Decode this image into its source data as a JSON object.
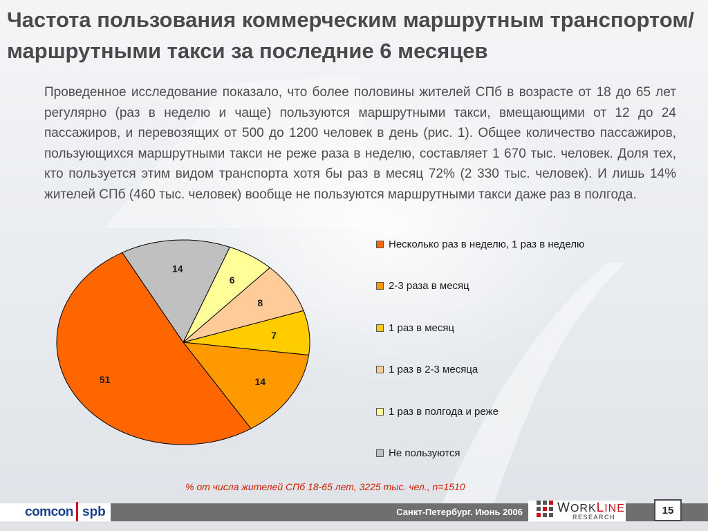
{
  "title": "Частота пользования коммерческим маршрутным транспортом/маршрутными такси за последние 6 месяцев",
  "intro": "Проведенное исследование показало, что более половины жителей СПб в возрасте от 18 до 65 лет регулярно (раз в неделю и чаще) пользуются маршрутными такси, вмещающими от 12 до 24 пассажиров, и перевозящих от 500 до 1200 человек в день (рис. 1). Общее количество пассажиров, пользующихся маршрутными такси не реже раза в неделю, составляет 1 670 тыс. человек. Доля тех, кто пользуется этим видом транспорта хотя бы раз в месяц 72% (2 330 тыс. человек). И лишь 14% жителей СПб (460 тыс. человек) вообще не пользуются маршрутными такси даже раз в полгода.",
  "chart_data": {
    "type": "pie",
    "title": "",
    "legend_position": "right",
    "categories": [
      "Несколько раз в неделю, 1 раз в неделю",
      "2-3 раза в месяц",
      "1 раз в месяц",
      "1 раз в 2-3 месяца",
      "1 раз в полгода и реже",
      "Не пользуются"
    ],
    "values": [
      51,
      14,
      7,
      8,
      6,
      14
    ],
    "labels": [
      "51",
      "14",
      "7",
      "8",
      "6",
      "14"
    ],
    "colors": [
      "#ff6600",
      "#ff9900",
      "#ffcc00",
      "#ffcc99",
      "#ffff99",
      "#c0c0c0"
    ]
  },
  "footnote": "% от числа жителей СПб 18-65 лет, 3225 тыс. чел., n=1510",
  "footer": {
    "logo_left": "comcon",
    "logo_right": "spb",
    "date": "Санкт-Петербург. Июнь 2006",
    "brand_work": "Work",
    "brand_line": "Line",
    "brand_sub": "RESEARCH",
    "page_number": "15"
  }
}
